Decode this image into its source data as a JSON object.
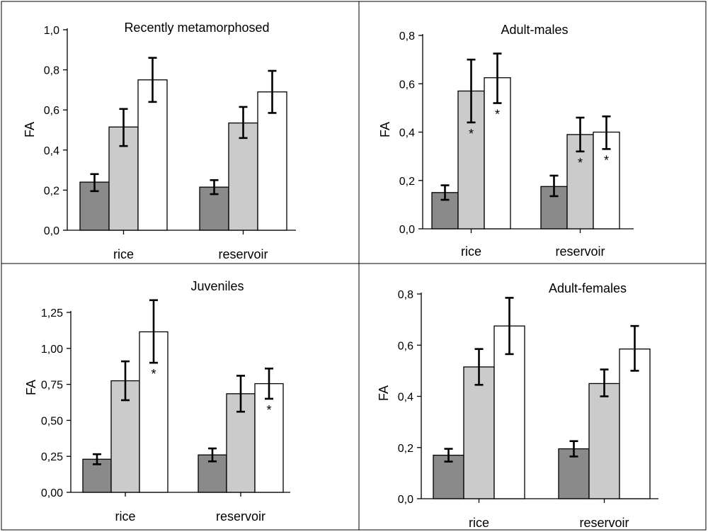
{
  "colors": {
    "dark": "#8a8a8a",
    "light": "#cbcbcb",
    "white": "#ffffff"
  },
  "chart_data": [
    {
      "type": "bar",
      "title": "Recently metamorphosed",
      "ylabel": "FA",
      "ylim": [
        0,
        1.0
      ],
      "yticks": [
        "0,0",
        "0,2",
        "0,4",
        "0,6",
        "0,8",
        "1,0"
      ],
      "categories": [
        "rice",
        "reservoir"
      ],
      "series": [
        {
          "color_key": "dark",
          "values": [
            0.24,
            0.215
          ],
          "err_low": [
            0.195,
            0.18
          ],
          "err_high": [
            0.28,
            0.25
          ],
          "stars": [
            false,
            false
          ]
        },
        {
          "color_key": "light",
          "values": [
            0.515,
            0.535
          ],
          "err_low": [
            0.42,
            0.46
          ],
          "err_high": [
            0.605,
            0.615
          ],
          "stars": [
            false,
            false
          ]
        },
        {
          "color_key": "white",
          "values": [
            0.75,
            0.69
          ],
          "err_low": [
            0.64,
            0.585
          ],
          "err_high": [
            0.86,
            0.795
          ],
          "stars": [
            false,
            false
          ]
        }
      ]
    },
    {
      "type": "bar",
      "title": "Adult-males",
      "ylabel": "FA",
      "ylim": [
        0,
        0.8
      ],
      "yticks": [
        "0,0",
        "0,2",
        "0,4",
        "0,6",
        "0,8"
      ],
      "categories": [
        "rice",
        "reservoir"
      ],
      "series": [
        {
          "color_key": "dark",
          "values": [
            0.15,
            0.175
          ],
          "err_low": [
            0.12,
            0.135
          ],
          "err_high": [
            0.18,
            0.22
          ],
          "stars": [
            false,
            false
          ]
        },
        {
          "color_key": "light",
          "values": [
            0.57,
            0.39
          ],
          "err_low": [
            0.44,
            0.32
          ],
          "err_high": [
            0.7,
            0.46
          ],
          "stars": [
            true,
            true
          ]
        },
        {
          "color_key": "white",
          "values": [
            0.625,
            0.4
          ],
          "err_low": [
            0.52,
            0.33
          ],
          "err_high": [
            0.725,
            0.465
          ],
          "stars": [
            true,
            true
          ]
        }
      ]
    },
    {
      "type": "bar",
      "title": "Juveniles",
      "ylabel": "FA",
      "ylim": [
        0,
        1.25
      ],
      "yticks": [
        "0,00",
        "0,25",
        "0,50",
        "0,75",
        "1,00",
        "1,25"
      ],
      "categories": [
        "rice",
        "reservoir"
      ],
      "series": [
        {
          "color_key": "dark",
          "values": [
            0.23,
            0.26
          ],
          "err_low": [
            0.195,
            0.215
          ],
          "err_high": [
            0.265,
            0.305
          ],
          "stars": [
            false,
            false
          ]
        },
        {
          "color_key": "light",
          "values": [
            0.775,
            0.685
          ],
          "err_low": [
            0.64,
            0.56
          ],
          "err_high": [
            0.91,
            0.81
          ],
          "stars": [
            false,
            false
          ]
        },
        {
          "color_key": "white",
          "values": [
            1.115,
            0.755
          ],
          "err_low": [
            0.9,
            0.65
          ],
          "err_high": [
            1.335,
            0.86
          ],
          "stars": [
            true,
            true
          ]
        }
      ]
    },
    {
      "type": "bar",
      "title": "Adult-females",
      "ylabel": "FA",
      "ylim": [
        0,
        0.8
      ],
      "yticks": [
        "0,0",
        "0,2",
        "0,4",
        "0,6",
        "0,8"
      ],
      "categories": [
        "rice",
        "reservoir"
      ],
      "series": [
        {
          "color_key": "dark",
          "values": [
            0.17,
            0.195
          ],
          "err_low": [
            0.145,
            0.165
          ],
          "err_high": [
            0.195,
            0.225
          ],
          "stars": [
            false,
            false
          ]
        },
        {
          "color_key": "light",
          "values": [
            0.515,
            0.45
          ],
          "err_low": [
            0.445,
            0.4
          ],
          "err_high": [
            0.585,
            0.505
          ],
          "stars": [
            false,
            false
          ]
        },
        {
          "color_key": "white",
          "values": [
            0.675,
            0.585
          ],
          "err_low": [
            0.565,
            0.5
          ],
          "err_high": [
            0.785,
            0.675
          ],
          "stars": [
            false,
            false
          ]
        }
      ]
    }
  ]
}
